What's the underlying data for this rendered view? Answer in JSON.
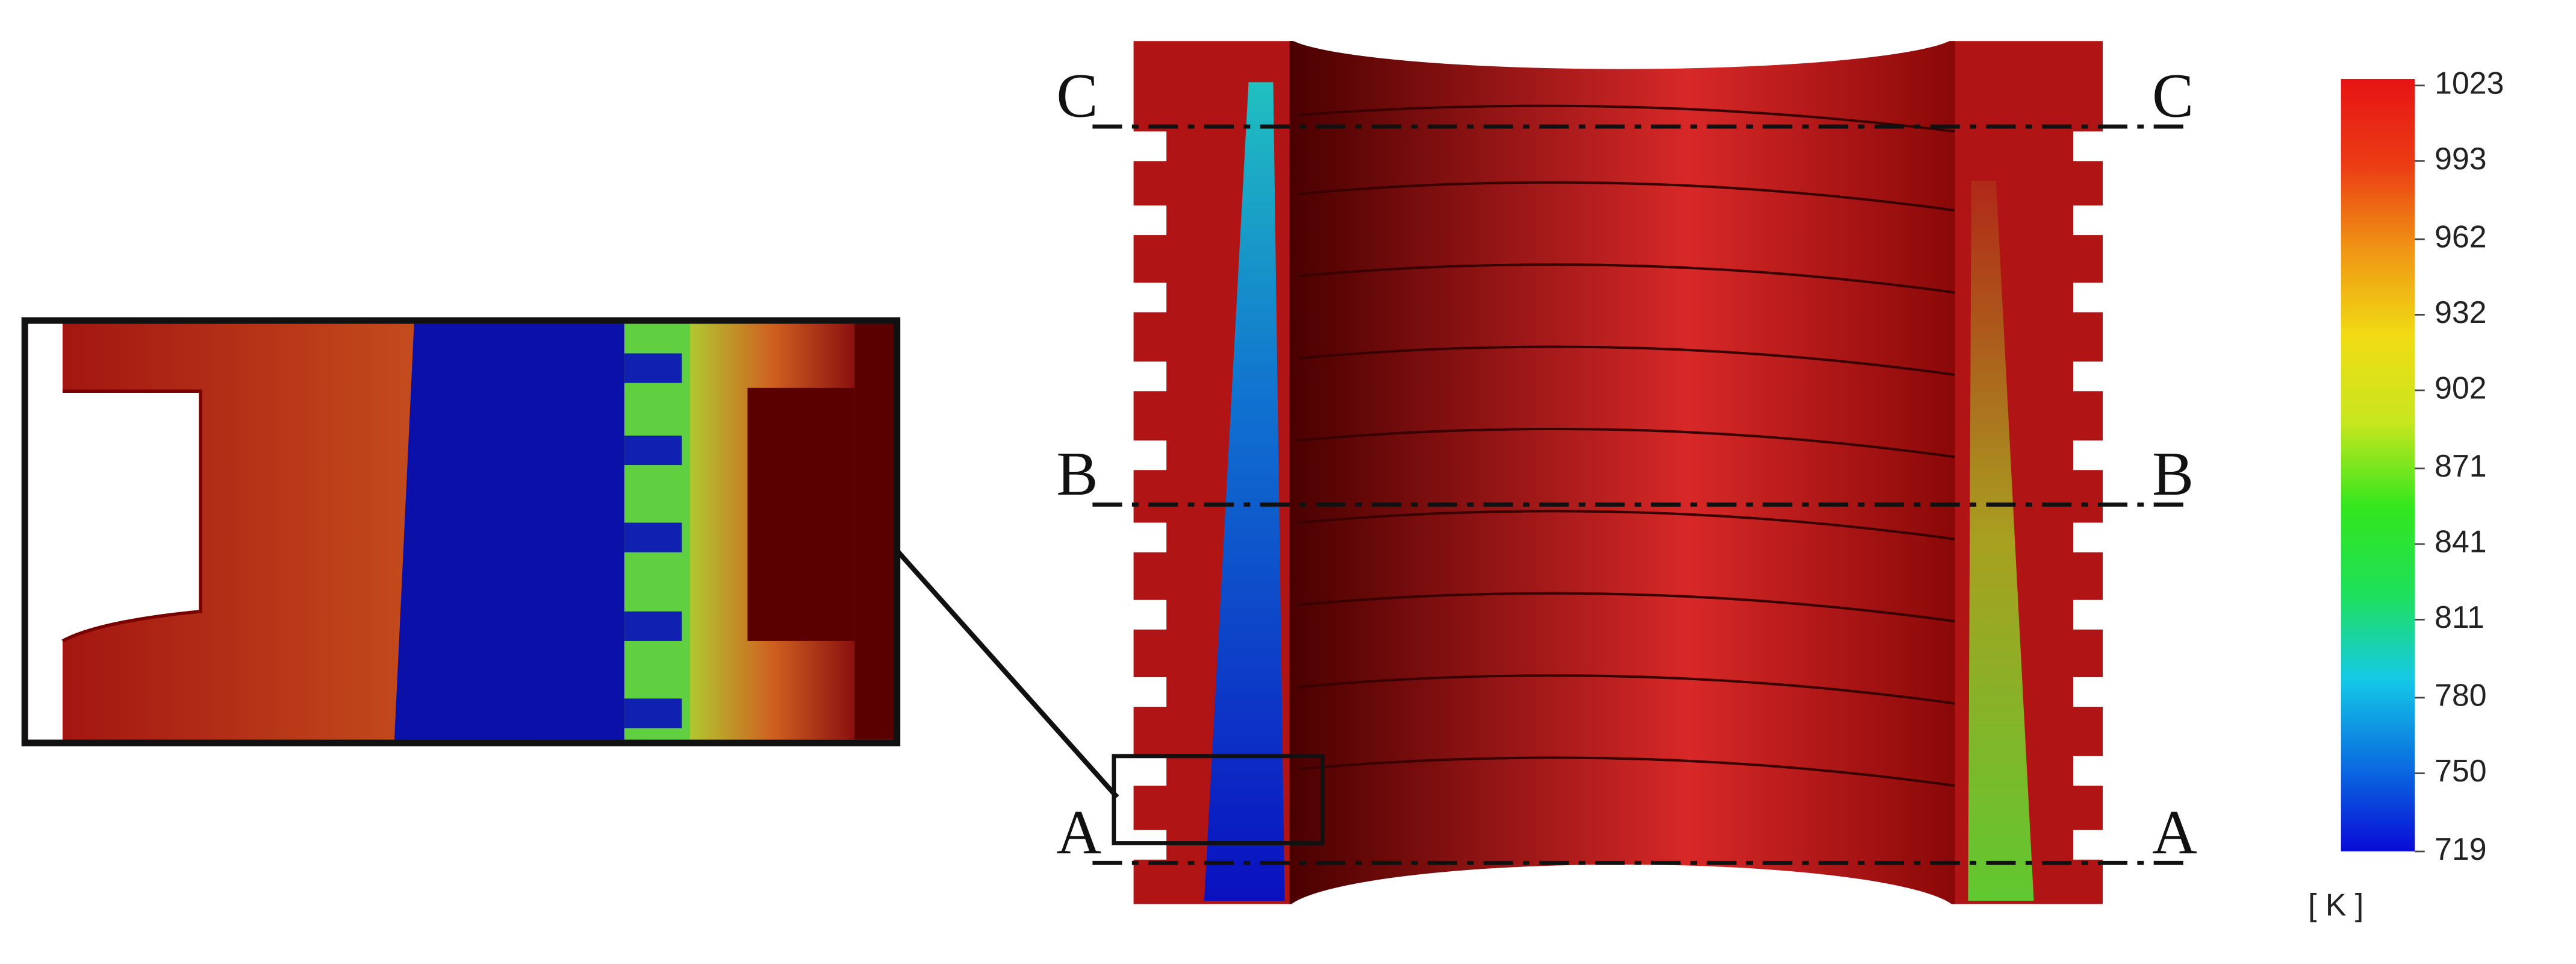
{
  "sections": [
    {
      "left": "C",
      "right": "C"
    },
    {
      "left": "B",
      "right": "B"
    },
    {
      "left": "A",
      "right": "A"
    }
  ],
  "colorbar": {
    "ticks": [
      1023,
      993,
      962,
      932,
      902,
      871,
      841,
      811,
      780,
      750,
      719
    ],
    "unit": "[ K ]",
    "colormap": [
      "#0a0ad8",
      "#0a6ee0",
      "#14c8e6",
      "#1ee05a",
      "#32e61e",
      "#c8e61e",
      "#f0dc14",
      "#f09614",
      "#eb3c14",
      "#e61414"
    ]
  }
}
